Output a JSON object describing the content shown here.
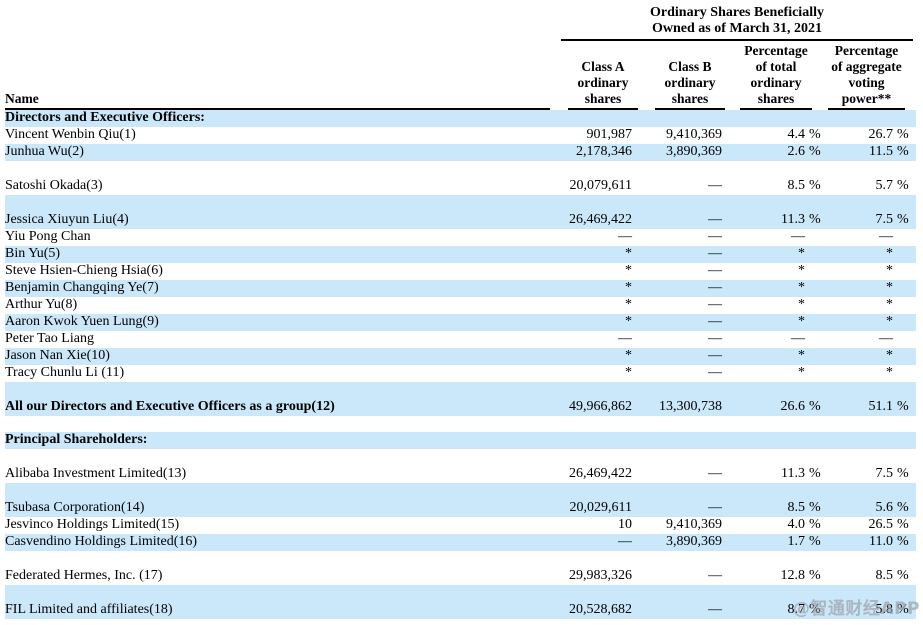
{
  "colors": {
    "row_highlight": "#cbe8fa",
    "text": "#000000",
    "watermark": "#9ba2a8"
  },
  "watermark": {
    "text": "@智通财经APP"
  },
  "table": {
    "spanning_header": {
      "line1": "Ordinary Shares Beneficially",
      "line2": "Owned as of March 31, 2021"
    },
    "columns": {
      "name": "Name",
      "class_a": "Class A\nordinary\nshares",
      "class_b": "Class B\nordinary\nshares",
      "pct_total": "Percentage\nof total\nordinary\nshares",
      "pct_voting": "Percentage\nof aggregate\nvoting\npower**"
    },
    "rows": [
      {
        "name": "Directors and Executive Officers:",
        "class_a": "",
        "class_b": "",
        "pct_total": "",
        "pct_total_sign": "",
        "pct_voting": "",
        "pct_voting_sign": "",
        "section_header": true,
        "bold": true,
        "highlight": true,
        "tall": false,
        "spacer": false
      },
      {
        "name": "Vincent Wenbin Qiu(1)",
        "class_a": "901,987",
        "class_b": "9,410,369",
        "pct_total": "4.4",
        "pct_total_sign": "%",
        "pct_voting": "26.7",
        "pct_voting_sign": "%",
        "section_header": false,
        "bold": false,
        "highlight": false,
        "tall": false,
        "spacer": false
      },
      {
        "name": "Junhua Wu(2)",
        "class_a": "2,178,346",
        "class_b": "3,890,369",
        "pct_total": "2.6",
        "pct_total_sign": "%",
        "pct_voting": "11.5",
        "pct_voting_sign": "%",
        "section_header": false,
        "bold": false,
        "highlight": true,
        "tall": false,
        "spacer": false
      },
      {
        "name": "Satoshi Okada(3)",
        "class_a": "20,079,611",
        "class_b": "—",
        "pct_total": "8.5",
        "pct_total_sign": "%",
        "pct_voting": "5.7",
        "pct_voting_sign": "%",
        "section_header": false,
        "bold": false,
        "highlight": false,
        "tall": true,
        "spacer": false
      },
      {
        "name": "Jessica Xiuyun Liu(4)",
        "class_a": "26,469,422",
        "class_b": "—",
        "pct_total": "11.3",
        "pct_total_sign": "%",
        "pct_voting": "7.5",
        "pct_voting_sign": "%",
        "section_header": false,
        "bold": false,
        "highlight": true,
        "tall": true,
        "spacer": false
      },
      {
        "name": "Yiu Pong Chan",
        "class_a": "—",
        "class_b": "—",
        "pct_total": "—",
        "pct_total_sign": "",
        "pct_voting": "—",
        "pct_voting_sign": "",
        "section_header": false,
        "bold": false,
        "highlight": false,
        "tall": false,
        "spacer": false
      },
      {
        "name": "Bin Yu(5)",
        "class_a": "*",
        "class_b": "—",
        "pct_total": "*",
        "pct_total_sign": "",
        "pct_voting": "*",
        "pct_voting_sign": "",
        "section_header": false,
        "bold": false,
        "highlight": true,
        "tall": false,
        "spacer": false
      },
      {
        "name": "Steve Hsien-Chieng Hsia(6)",
        "class_a": "*",
        "class_b": "—",
        "pct_total": "*",
        "pct_total_sign": "",
        "pct_voting": "*",
        "pct_voting_sign": "",
        "section_header": false,
        "bold": false,
        "highlight": false,
        "tall": false,
        "spacer": false
      },
      {
        "name": "Benjamin Changqing Ye(7)",
        "class_a": "*",
        "class_b": "—",
        "pct_total": "*",
        "pct_total_sign": "",
        "pct_voting": "*",
        "pct_voting_sign": "",
        "section_header": false,
        "bold": false,
        "highlight": true,
        "tall": false,
        "spacer": false
      },
      {
        "name": "Arthur Yu(8)",
        "class_a": "*",
        "class_b": "—",
        "pct_total": "*",
        "pct_total_sign": "",
        "pct_voting": "*",
        "pct_voting_sign": "",
        "section_header": false,
        "bold": false,
        "highlight": false,
        "tall": false,
        "spacer": false
      },
      {
        "name": "Aaron Kwok Yuen Lung(9)",
        "class_a": "*",
        "class_b": "—",
        "pct_total": "*",
        "pct_total_sign": "",
        "pct_voting": "*",
        "pct_voting_sign": "",
        "section_header": false,
        "bold": false,
        "highlight": true,
        "tall": false,
        "spacer": false
      },
      {
        "name": "Peter Tao Liang",
        "class_a": "—",
        "class_b": "—",
        "pct_total": "—",
        "pct_total_sign": "",
        "pct_voting": "—",
        "pct_voting_sign": "",
        "section_header": false,
        "bold": false,
        "highlight": false,
        "tall": false,
        "spacer": false
      },
      {
        "name": "Jason Nan Xie(10)",
        "class_a": "*",
        "class_b": "—",
        "pct_total": "*",
        "pct_total_sign": "",
        "pct_voting": "*",
        "pct_voting_sign": "",
        "section_header": false,
        "bold": false,
        "highlight": true,
        "tall": false,
        "spacer": false
      },
      {
        "name": "Tracy Chunlu Li (11)",
        "class_a": "*",
        "class_b": "—",
        "pct_total": "*",
        "pct_total_sign": "",
        "pct_voting": "*",
        "pct_voting_sign": "",
        "section_header": false,
        "bold": false,
        "highlight": false,
        "tall": false,
        "spacer": false
      },
      {
        "name": "All our Directors and Executive Officers as a group(12)",
        "class_a": "49,966,862",
        "class_b": "13,300,738",
        "pct_total": "26.6",
        "pct_total_sign": "%",
        "pct_voting": "51.1",
        "pct_voting_sign": "%",
        "section_header": false,
        "bold": true,
        "highlight": true,
        "tall": true,
        "spacer": false
      },
      {
        "name": "",
        "class_a": "",
        "class_b": "",
        "pct_total": "",
        "pct_total_sign": "",
        "pct_voting": "",
        "pct_voting_sign": "",
        "section_header": false,
        "bold": false,
        "highlight": false,
        "tall": false,
        "spacer": true
      },
      {
        "name": "Principal Shareholders:",
        "class_a": "",
        "class_b": "",
        "pct_total": "",
        "pct_total_sign": "",
        "pct_voting": "",
        "pct_voting_sign": "",
        "section_header": true,
        "bold": true,
        "highlight": true,
        "tall": false,
        "spacer": false
      },
      {
        "name": "Alibaba Investment Limited(13)",
        "class_a": "26,469,422",
        "class_b": "—",
        "pct_total": "11.3",
        "pct_total_sign": "%",
        "pct_voting": "7.5",
        "pct_voting_sign": "%",
        "section_header": false,
        "bold": false,
        "highlight": false,
        "tall": true,
        "spacer": false
      },
      {
        "name": "Tsubasa Corporation(14)",
        "class_a": "20,029,611",
        "class_b": "—",
        "pct_total": "8.5",
        "pct_total_sign": "%",
        "pct_voting": "5.6",
        "pct_voting_sign": "%",
        "section_header": false,
        "bold": false,
        "highlight": true,
        "tall": true,
        "spacer": false
      },
      {
        "name": "Jesvinco Holdings Limited(15)",
        "class_a": "10",
        "class_b": "9,410,369",
        "pct_total": "4.0",
        "pct_total_sign": "%",
        "pct_voting": "26.5",
        "pct_voting_sign": "%",
        "section_header": false,
        "bold": false,
        "highlight": false,
        "tall": false,
        "spacer": false
      },
      {
        "name": "Casvendino Holdings Limited(16)",
        "class_a": "—",
        "class_b": "3,890,369",
        "pct_total": "1.7",
        "pct_total_sign": "%",
        "pct_voting": "11.0",
        "pct_voting_sign": "%",
        "section_header": false,
        "bold": false,
        "highlight": true,
        "tall": false,
        "spacer": false
      },
      {
        "name": "Federated Hermes, Inc. (17)",
        "class_a": "29,983,326",
        "class_b": "—",
        "pct_total": "12.8",
        "pct_total_sign": "%",
        "pct_voting": "8.5",
        "pct_voting_sign": "%",
        "section_header": false,
        "bold": false,
        "highlight": false,
        "tall": true,
        "spacer": false
      },
      {
        "name": "FIL Limited and affiliates(18)",
        "class_a": "20,528,682",
        "class_b": "—",
        "pct_total": "8.7",
        "pct_total_sign": "%",
        "pct_voting": "5.8",
        "pct_voting_sign": "%",
        "section_header": false,
        "bold": false,
        "highlight": true,
        "tall": true,
        "spacer": false
      }
    ]
  }
}
